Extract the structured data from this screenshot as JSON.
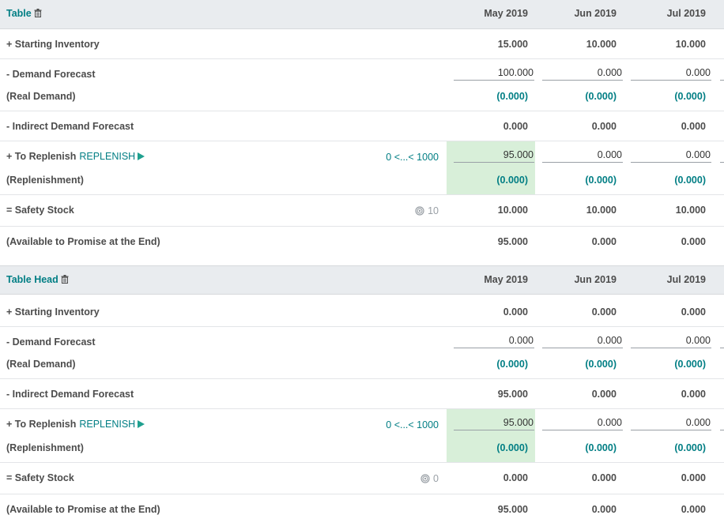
{
  "columns": [
    "May 2019",
    "Jun 2019",
    "Jul 2019"
  ],
  "colors": {
    "accent": "#017e84",
    "highlight": "#d8efd9",
    "header_bg": "#e9ecef"
  },
  "labels": {
    "starting_inventory": "+ Starting Inventory",
    "demand_forecast": "- Demand Forecast",
    "real_demand": "(Real Demand)",
    "indirect_demand": "- Indirect Demand Forecast",
    "to_replenish": "+ To Replenish",
    "replenish_button": "REPLENISH",
    "replenishment": "(Replenishment)",
    "safety_stock": "= Safety Stock",
    "available_to_promise": "(Available to Promise at the End)"
  },
  "products": [
    {
      "name": "Table",
      "range": "0 <...< 1000",
      "safety_stock_target": "10",
      "starting_inventory": [
        "15.000",
        "10.000",
        "10.000"
      ],
      "demand_forecast": [
        "100.000",
        "0.000",
        "0.000"
      ],
      "real_demand": [
        "(0.000)",
        "(0.000)",
        "(0.000)"
      ],
      "indirect_demand": [
        "0.000",
        "0.000",
        "0.000"
      ],
      "to_replenish": [
        "95.000",
        "0.000",
        "0.000"
      ],
      "replenishment": [
        "(0.000)",
        "(0.000)",
        "(0.000)"
      ],
      "safety_stock": [
        "10.000",
        "10.000",
        "10.000"
      ],
      "available_to_promise": [
        "95.000",
        "0.000",
        "0.000"
      ]
    },
    {
      "name": "Table Head",
      "range": "0 <...< 1000",
      "safety_stock_target": "0",
      "starting_inventory": [
        "0.000",
        "0.000",
        "0.000"
      ],
      "demand_forecast": [
        "0.000",
        "0.000",
        "0.000"
      ],
      "real_demand": [
        "(0.000)",
        "(0.000)",
        "(0.000)"
      ],
      "indirect_demand": [
        "95.000",
        "0.000",
        "0.000"
      ],
      "to_replenish": [
        "95.000",
        "0.000",
        "0.000"
      ],
      "replenishment": [
        "(0.000)",
        "(0.000)",
        "(0.000)"
      ],
      "safety_stock": [
        "0.000",
        "0.000",
        "0.000"
      ],
      "available_to_promise": [
        "95.000",
        "0.000",
        "0.000"
      ]
    }
  ]
}
